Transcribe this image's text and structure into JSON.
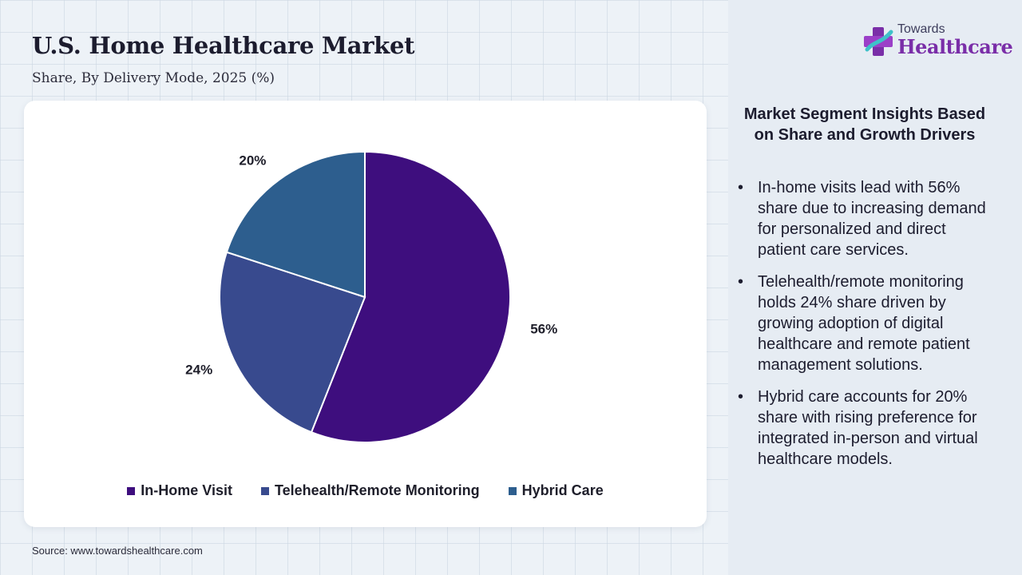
{
  "header": {
    "title": "U.S. Home Healthcare Market",
    "subtitle": "Share, By Delivery Mode, 2025 (%)"
  },
  "chart_data": {
    "type": "pie",
    "title": "U.S. Home Healthcare Market",
    "subtitle": "Share, By Delivery Mode, 2025 (%)",
    "categories": [
      "In-Home Visit",
      "Telehealth/Remote Monitoring",
      "Hybrid Care"
    ],
    "values": [
      56,
      24,
      20
    ],
    "labels": [
      "56%",
      "24%",
      "20%"
    ],
    "colors": [
      "#3e0e7e",
      "#384a8e",
      "#2d5e8e"
    ],
    "start_angle_deg": 0,
    "direction": "clockwise",
    "legend_position": "bottom"
  },
  "source": "Source: www.towardshealthcare.com",
  "logo": {
    "top_text": "Towards",
    "main_text": "Healthcare",
    "icon": "medical-cross-icon"
  },
  "insights": {
    "heading": "Market Segment Insights Based on Share and Growth Drivers",
    "items": [
      "In-home visits lead with 56% share due to increasing demand for personalized and direct patient care services.",
      "Telehealth/remote monitoring holds 24% share driven by growing adoption of digital healthcare and remote patient management solutions.",
      "Hybrid care accounts for 20% share with rising preference for integrated in-person and virtual healthcare models."
    ]
  }
}
